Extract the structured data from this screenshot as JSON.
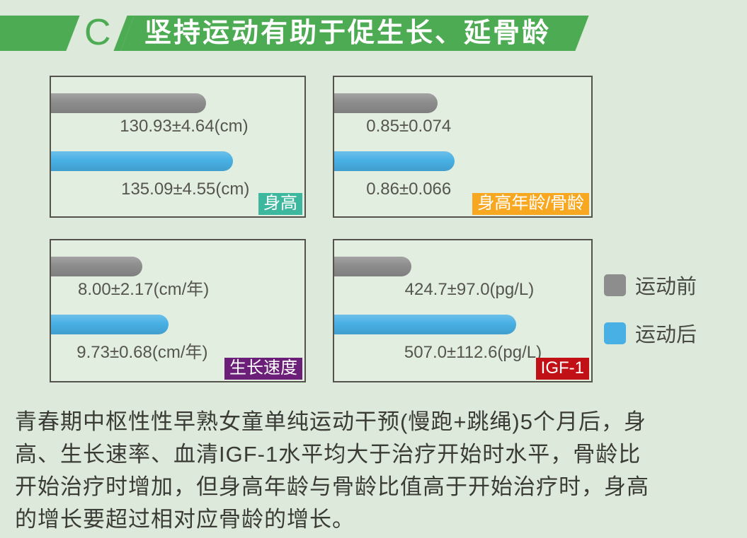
{
  "page": {
    "background": "#dde9da"
  },
  "header": {
    "section_letter": "C",
    "title": "坚持运动有助于促生长、延骨龄",
    "accent_green": "#4dac53"
  },
  "legend": {
    "position": "right",
    "items": [
      {
        "label": "运动前",
        "color": "#8d8d8d"
      },
      {
        "label": "运动后",
        "color": "#48b0e5"
      }
    ]
  },
  "chart_data": {
    "type": "bar",
    "orientation": "horizontal",
    "series_names": [
      "运动前",
      "运动后"
    ],
    "colors": {
      "运动前": "#8d8d8d",
      "运动后": "#48b0e5"
    },
    "panels": [
      {
        "badge": "身高",
        "badge_color": "#3db79e",
        "bars": [
          {
            "series": "运动前",
            "label": "130.93±4.64(cm)",
            "mean": 130.93,
            "sd": 4.64,
            "unit": "cm",
            "bar_pct": 61.3,
            "label_center_pct": 52.5
          },
          {
            "series": "运动后",
            "label": "135.09±4.55(cm)",
            "mean": 135.09,
            "sd": 4.55,
            "unit": "cm",
            "bar_pct": 71.8,
            "label_center_pct": 53
          }
        ]
      },
      {
        "badge": "身高年龄/骨龄",
        "badge_color": "#f8a820",
        "bars": [
          {
            "series": "运动前",
            "label": "0.85±0.074",
            "mean": 0.85,
            "sd": 0.074,
            "unit": "",
            "bar_pct": 40.3,
            "label_center_pct": 29
          },
          {
            "series": "运动后",
            "label": "0.86±0.066",
            "mean": 0.86,
            "sd": 0.066,
            "unit": "",
            "bar_pct": 46.9,
            "label_center_pct": 29
          }
        ]
      },
      {
        "badge": "生长速度",
        "badge_color": "#6b1f78",
        "bars": [
          {
            "series": "运动前",
            "label": "8.00±2.17(cm/年)",
            "mean": 8.0,
            "sd": 2.17,
            "unit": "cm/年",
            "bar_pct": 35.9,
            "label_center_pct": 36.5
          },
          {
            "series": "运动后",
            "label": "9.73±0.68(cm/年)",
            "mean": 9.73,
            "sd": 0.68,
            "unit": "cm/年",
            "bar_pct": 46.4,
            "label_center_pct": 36
          }
        ]
      },
      {
        "badge": "IGF-1",
        "badge_color": "#c11117",
        "bars": [
          {
            "series": "运动前",
            "label": "424.7±97.0(pg/L)",
            "mean": 424.7,
            "sd": 97.0,
            "unit": "pg/L",
            "bar_pct": 30.0,
            "label_center_pct": 52.6
          },
          {
            "series": "运动后",
            "label": "507.0±112.6(pg/L)",
            "mean": 507.0,
            "sd": 112.6,
            "unit": "pg/L",
            "bar_pct": 70.8,
            "label_center_pct": 54
          }
        ]
      }
    ]
  },
  "caption": {
    "lines": [
      "青春期中枢性性早熟女童单纯运动干预(慢跑+跳绳)5个月后，身",
      "高、生长速率、血清IGF-1水平均大于治疗开始时水平，骨龄比",
      "开始治疗时增加，但身高年龄与骨龄比值高于开始治疗时，身高",
      "的增长要超过相对应骨龄的增长。"
    ]
  }
}
